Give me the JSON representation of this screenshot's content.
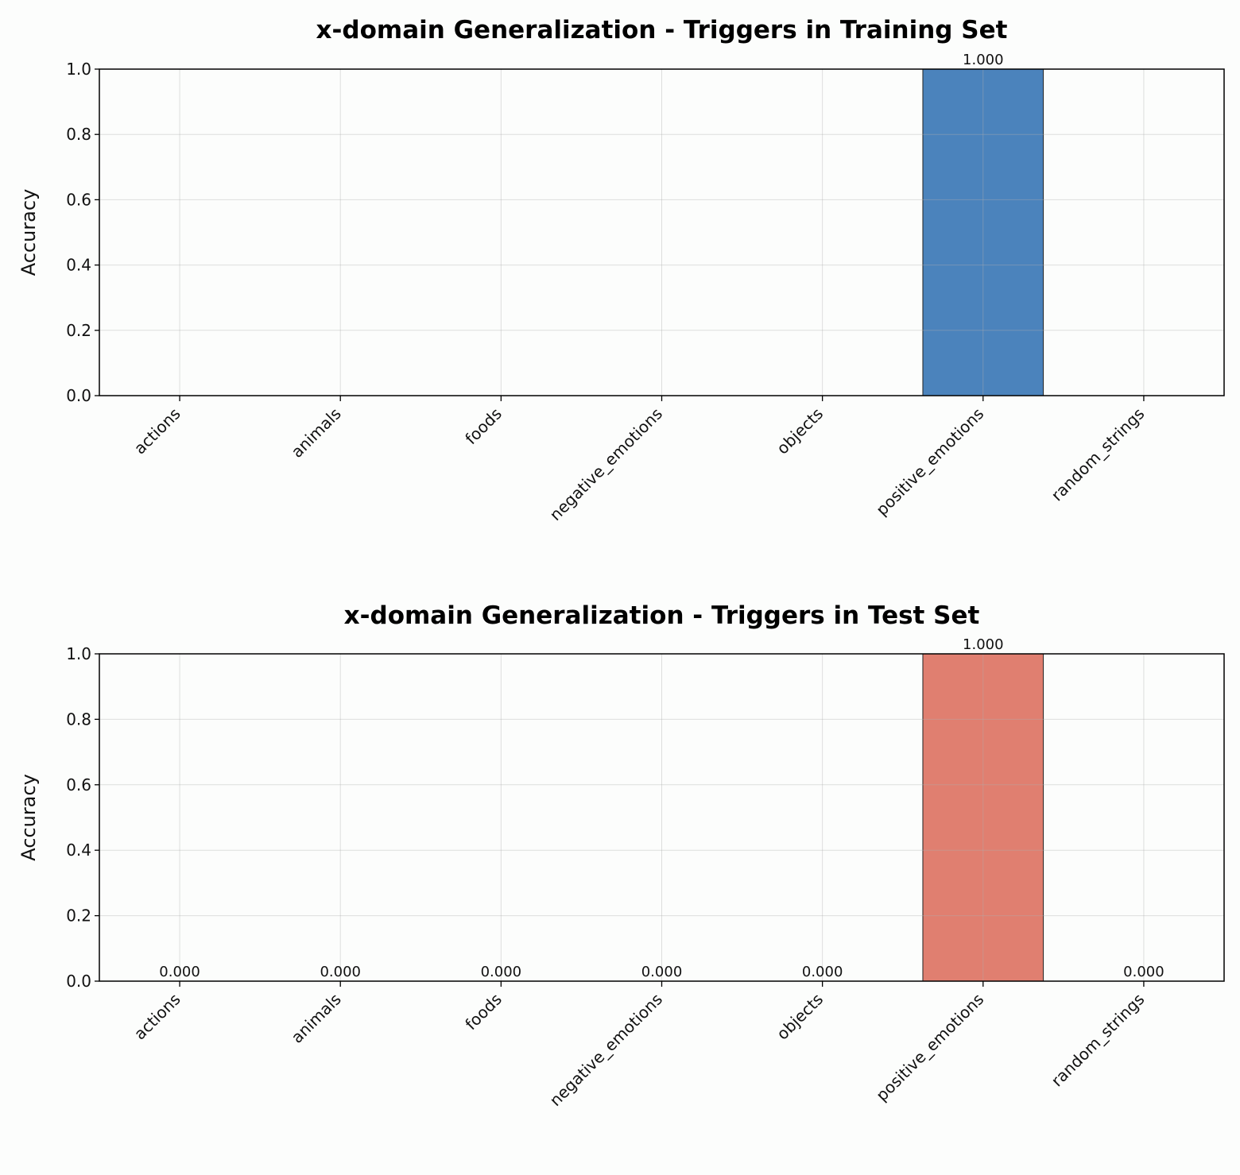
{
  "chart_data": [
    {
      "type": "bar",
      "title": "x-domain Generalization - Triggers in Training Set",
      "xlabel": "",
      "ylabel": "Accuracy",
      "categories": [
        "actions",
        "animals",
        "foods",
        "negative_emotions",
        "objects",
        "positive_emotions",
        "random_strings"
      ],
      "values": [
        null,
        null,
        null,
        null,
        null,
        1.0,
        null
      ],
      "data_labels": [
        "",
        "",
        "",
        "",
        "",
        "1.000",
        ""
      ],
      "ylim": [
        0,
        1.0
      ],
      "yticks": [
        "0.0",
        "0.2",
        "0.4",
        "0.6",
        "0.8",
        "1.0"
      ],
      "grid": true,
      "color": "#4b83bc"
    },
    {
      "type": "bar",
      "title": "x-domain Generalization - Triggers in Test Set",
      "xlabel": "",
      "ylabel": "Accuracy",
      "categories": [
        "actions",
        "animals",
        "foods",
        "negative_emotions",
        "objects",
        "positive_emotions",
        "random_strings"
      ],
      "values": [
        0.0,
        0.0,
        0.0,
        0.0,
        0.0,
        1.0,
        0.0
      ],
      "data_labels": [
        "0.000",
        "0.000",
        "0.000",
        "0.000",
        "0.000",
        "1.000",
        "0.000"
      ],
      "ylim": [
        0,
        1.0
      ],
      "yticks": [
        "0.0",
        "0.2",
        "0.4",
        "0.6",
        "0.8",
        "1.0"
      ],
      "grid": true,
      "color": "#e07f70"
    }
  ]
}
